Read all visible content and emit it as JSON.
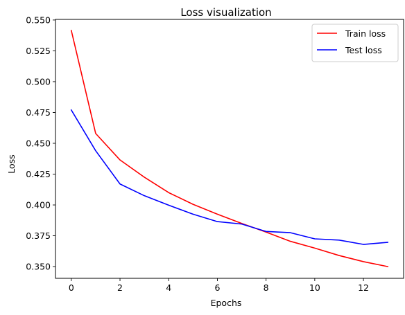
{
  "chart_data": {
    "type": "line",
    "title": "Loss visualization",
    "xlabel": "Epochs",
    "ylabel": "Loss",
    "x": [
      0,
      1,
      2,
      3,
      4,
      5,
      6,
      7,
      8,
      9,
      10,
      11,
      12,
      13
    ],
    "xlim": [
      -0.65,
      13.65
    ],
    "ylim": [
      0.3405,
      0.5505
    ],
    "xticks": [
      0,
      2,
      4,
      6,
      8,
      10,
      12
    ],
    "yticks": [
      0.35,
      0.375,
      0.4,
      0.425,
      0.45,
      0.475,
      0.5,
      0.525,
      0.55
    ],
    "xtick_labels": [
      "0",
      "2",
      "4",
      "6",
      "8",
      "10",
      "12"
    ],
    "ytick_labels": [
      "0.350",
      "0.375",
      "0.400",
      "0.425",
      "0.450",
      "0.475",
      "0.500",
      "0.525",
      "0.550"
    ],
    "grid": false,
    "legend_position": "top-right",
    "series": [
      {
        "name": "Train loss",
        "color": "#ff0000",
        "values": [
          0.5415,
          0.458,
          0.4365,
          0.4225,
          0.41,
          0.4005,
          0.3925,
          0.385,
          0.378,
          0.3705,
          0.365,
          0.359,
          0.354,
          0.35
        ]
      },
      {
        "name": "Test loss",
        "color": "#0000ff",
        "values": [
          0.477,
          0.444,
          0.417,
          0.4075,
          0.3998,
          0.3925,
          0.3865,
          0.3845,
          0.3785,
          0.3775,
          0.3725,
          0.3715,
          0.368,
          0.3697
        ]
      }
    ]
  }
}
